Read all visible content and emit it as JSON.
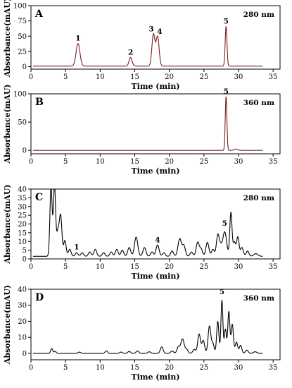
{
  "chart_data": [
    {
      "type": "line",
      "panel_letter": "A",
      "wavelength": "280 nm",
      "xlabel": "Time (min)",
      "ylabel": "Absorbance(mAU)",
      "xlim": [
        0,
        36
      ],
      "ylim": [
        -4,
        100
      ],
      "xticks": [
        0,
        5,
        10,
        15,
        20,
        25,
        30,
        35
      ],
      "yticks": [
        0,
        25,
        50,
        75,
        100
      ],
      "baseline": 1,
      "line_color": "#7a1f1f",
      "peaks": [
        {
          "label": "1",
          "t": 6.8,
          "h": 37,
          "w": 0.28
        },
        {
          "label": "2",
          "t": 14.4,
          "h": 14,
          "w": 0.22
        },
        {
          "label": "3",
          "t": 17.7,
          "h": 52,
          "w": 0.22
        },
        {
          "label": "4",
          "t": 18.3,
          "h": 48,
          "w": 0.22
        },
        {
          "label": "5",
          "t": 28.2,
          "h": 65,
          "w": 0.13
        }
      ]
    },
    {
      "type": "line",
      "panel_letter": "B",
      "wavelength": "360 nm",
      "xlabel": "Time (min)",
      "ylabel": "Absorbance(mAU)",
      "xlim": [
        0,
        36
      ],
      "ylim": [
        -6,
        100
      ],
      "xticks": [
        0,
        5,
        10,
        15,
        20,
        25,
        30,
        35
      ],
      "yticks": [
        0,
        50,
        100
      ],
      "baseline": 0,
      "line_color": "#7a1f1f",
      "peaks": [
        {
          "label": "5",
          "t": 28.2,
          "h": 95,
          "w": 0.12
        },
        {
          "label": "",
          "t": 29.6,
          "h": 2.5,
          "w": 0.25
        }
      ]
    },
    {
      "type": "line",
      "panel_letter": "C",
      "wavelength": "280 nm",
      "xlabel": "Time (min)",
      "ylabel": "Absorbance(mAU)",
      "xlim": [
        0,
        36
      ],
      "ylim": [
        0,
        40
      ],
      "xticks": [
        0,
        5,
        10,
        15,
        20,
        25,
        30,
        35
      ],
      "yticks": [
        0,
        5,
        10,
        15,
        20,
        25,
        30,
        35,
        40
      ],
      "baseline": 1.5,
      "line_color": "#000000",
      "label_positions": [
        {
          "label": "1",
          "t": 6.6,
          "y": 5.5
        },
        {
          "label": "4",
          "t": 18.3,
          "y": 9.5
        },
        {
          "label": "5",
          "t": 28.0,
          "y": 19
        }
      ],
      "peaks": [
        {
          "label": "",
          "t": 2.9,
          "h": 40,
          "w": 0.16
        },
        {
          "label": "",
          "t": 3.4,
          "h": 40,
          "w": 0.16
        },
        {
          "label": "",
          "t": 3.9,
          "h": 14,
          "w": 0.2
        },
        {
          "label": "",
          "t": 4.3,
          "h": 22,
          "w": 0.18
        },
        {
          "label": "",
          "t": 4.9,
          "h": 9,
          "w": 0.18
        },
        {
          "label": "",
          "t": 5.6,
          "h": 4,
          "w": 0.2
        },
        {
          "label": "",
          "t": 6.6,
          "h": 2,
          "w": 0.2
        },
        {
          "label": "",
          "t": 7.4,
          "h": 2,
          "w": 0.2
        },
        {
          "label": "",
          "t": 8.5,
          "h": 2.5,
          "w": 0.2
        },
        {
          "label": "",
          "t": 9.3,
          "h": 4,
          "w": 0.2
        },
        {
          "label": "",
          "t": 10.5,
          "h": 2,
          "w": 0.2
        },
        {
          "label": "",
          "t": 11.6,
          "h": 2.5,
          "w": 0.2
        },
        {
          "label": "",
          "t": 12.4,
          "h": 4,
          "w": 0.2
        },
        {
          "label": "",
          "t": 13.2,
          "h": 3.5,
          "w": 0.2
        },
        {
          "label": "",
          "t": 14.2,
          "h": 5,
          "w": 0.22
        },
        {
          "label": "",
          "t": 15.2,
          "h": 11,
          "w": 0.24
        },
        {
          "label": "",
          "t": 16.4,
          "h": 5,
          "w": 0.22
        },
        {
          "label": "",
          "t": 17.5,
          "h": 2.5,
          "w": 0.2
        },
        {
          "label": "",
          "t": 18.3,
          "h": 6.5,
          "w": 0.22
        },
        {
          "label": "",
          "t": 19.2,
          "h": 2,
          "w": 0.2
        },
        {
          "label": "",
          "t": 20.4,
          "h": 3,
          "w": 0.2
        },
        {
          "label": "",
          "t": 21.5,
          "h": 10,
          "w": 0.25
        },
        {
          "label": "",
          "t": 22.1,
          "h": 6,
          "w": 0.22
        },
        {
          "label": "",
          "t": 23.2,
          "h": 2.5,
          "w": 0.2
        },
        {
          "label": "",
          "t": 24.1,
          "h": 8,
          "w": 0.22
        },
        {
          "label": "",
          "t": 24.6,
          "h": 4,
          "w": 0.2
        },
        {
          "label": "",
          "t": 25.5,
          "h": 8,
          "w": 0.22
        },
        {
          "label": "",
          "t": 26.3,
          "h": 4,
          "w": 0.2
        },
        {
          "label": "",
          "t": 27.0,
          "h": 12,
          "w": 0.2
        },
        {
          "label": "",
          "t": 27.4,
          "h": 5,
          "w": 0.2
        },
        {
          "label": "",
          "t": 28.0,
          "h": 14,
          "w": 0.28
        },
        {
          "label": "",
          "t": 28.9,
          "h": 25,
          "w": 0.16
        },
        {
          "label": "",
          "t": 29.4,
          "h": 8,
          "w": 0.18
        },
        {
          "label": "",
          "t": 29.9,
          "h": 11,
          "w": 0.18
        },
        {
          "label": "",
          "t": 30.5,
          "h": 5,
          "w": 0.2
        },
        {
          "label": "",
          "t": 31.3,
          "h": 3,
          "w": 0.2
        },
        {
          "label": "",
          "t": 32.5,
          "h": 1.5,
          "w": 0.3
        }
      ]
    },
    {
      "type": "line",
      "panel_letter": "D",
      "wavelength": "360 nm",
      "xlabel": "Time (min)",
      "ylabel": "Absorbance(mAU)",
      "xlim": [
        0,
        36
      ],
      "ylim": [
        -4,
        40
      ],
      "xticks": [
        0,
        5,
        10,
        15,
        20,
        25,
        30,
        35
      ],
      "yticks": [
        0,
        10,
        20,
        30,
        40
      ],
      "baseline": 0,
      "line_color": "#000000",
      "label_positions": [
        {
          "label": "5",
          "t": 27.6,
          "y": 37
        }
      ],
      "peaks": [
        {
          "label": "",
          "t": 3.0,
          "h": 3,
          "w": 0.15
        },
        {
          "label": "",
          "t": 3.5,
          "h": 1.2,
          "w": 0.15
        },
        {
          "label": "",
          "t": 7.0,
          "h": 0.8,
          "w": 0.2
        },
        {
          "label": "",
          "t": 10.9,
          "h": 1.5,
          "w": 0.18
        },
        {
          "label": "",
          "t": 13.0,
          "h": 0.8,
          "w": 0.2
        },
        {
          "label": "",
          "t": 14.2,
          "h": 1.2,
          "w": 0.2
        },
        {
          "label": "",
          "t": 15.4,
          "h": 1.5,
          "w": 0.2
        },
        {
          "label": "",
          "t": 17.1,
          "h": 1.0,
          "w": 0.2
        },
        {
          "label": "",
          "t": 18.9,
          "h": 4,
          "w": 0.2
        },
        {
          "label": "",
          "t": 20.4,
          "h": 1.5,
          "w": 0.2
        },
        {
          "label": "",
          "t": 21.3,
          "h": 4,
          "w": 0.2
        },
        {
          "label": "",
          "t": 21.9,
          "h": 9,
          "w": 0.24
        },
        {
          "label": "",
          "t": 22.5,
          "h": 2.5,
          "w": 0.2
        },
        {
          "label": "",
          "t": 23.6,
          "h": 2.5,
          "w": 0.2
        },
        {
          "label": "",
          "t": 24.3,
          "h": 12,
          "w": 0.2
        },
        {
          "label": "",
          "t": 24.9,
          "h": 8,
          "w": 0.2
        },
        {
          "label": "",
          "t": 25.8,
          "h": 17,
          "w": 0.2
        },
        {
          "label": "",
          "t": 26.3,
          "h": 6,
          "w": 0.18
        },
        {
          "label": "",
          "t": 27.0,
          "h": 20,
          "w": 0.16
        },
        {
          "label": "",
          "t": 27.6,
          "h": 33,
          "w": 0.14
        },
        {
          "label": "",
          "t": 28.1,
          "h": 15,
          "w": 0.15
        },
        {
          "label": "",
          "t": 28.6,
          "h": 26,
          "w": 0.15
        },
        {
          "label": "",
          "t": 29.1,
          "h": 18,
          "w": 0.16
        },
        {
          "label": "",
          "t": 29.7,
          "h": 7,
          "w": 0.18
        },
        {
          "label": "",
          "t": 30.3,
          "h": 5,
          "w": 0.18
        },
        {
          "label": "",
          "t": 31.2,
          "h": 2,
          "w": 0.2
        },
        {
          "label": "",
          "t": 32.4,
          "h": 1,
          "w": 0.25
        }
      ]
    }
  ]
}
